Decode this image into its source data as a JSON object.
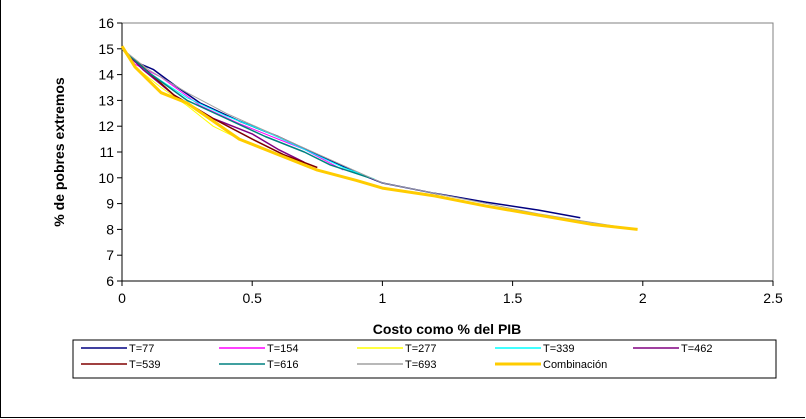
{
  "chart_data": {
    "type": "line",
    "title": "",
    "xlabel": "Costo como % del PIB",
    "ylabel": "% de pobres extremos",
    "xlim": [
      0,
      2.5
    ],
    "ylim": [
      6,
      16
    ],
    "x_ticks": [
      "0",
      "0.5",
      "1",
      "1.5",
      "2",
      "2.5"
    ],
    "y_ticks": [
      "6",
      "7",
      "8",
      "9",
      "10",
      "11",
      "12",
      "13",
      "14",
      "15",
      "16"
    ],
    "grid": false,
    "legend_position": "bottom",
    "series": [
      {
        "name": "T=77",
        "color": "#000080",
        "width": 1.5,
        "x": [
          0,
          0.05,
          0.12,
          0.2,
          0.3,
          0.45,
          0.6,
          0.75,
          0.9,
          1.0,
          1.2,
          1.4,
          1.6,
          1.76
        ],
        "y": [
          15.0,
          14.5,
          14.2,
          13.6,
          12.9,
          12.2,
          11.6,
          10.9,
          10.2,
          9.8,
          9.4,
          9.05,
          8.75,
          8.45
        ]
      },
      {
        "name": "T=154",
        "color": "#ff00ff",
        "width": 1,
        "x": [
          0,
          0.05,
          0.15,
          0.3,
          0.45,
          0.6,
          0.7,
          0.85
        ],
        "y": [
          15.0,
          14.4,
          13.9,
          12.8,
          12.1,
          11.5,
          11.1,
          10.3
        ]
      },
      {
        "name": "T=277",
        "color": "#ffff00",
        "width": 1,
        "x": [
          0,
          0.05,
          0.15,
          0.25,
          0.35,
          0.45,
          0.55
        ],
        "y": [
          15.0,
          14.3,
          13.5,
          12.8,
          12.0,
          11.5,
          11.1
        ]
      },
      {
        "name": "T=339",
        "color": "#00ffff",
        "width": 1,
        "x": [
          0,
          0.1,
          0.25,
          0.4,
          0.55,
          0.7,
          0.85,
          0.97
        ],
        "y": [
          15.0,
          14.1,
          13.1,
          12.4,
          11.8,
          11.1,
          10.4,
          9.95
        ]
      },
      {
        "name": "T=462",
        "color": "#800080",
        "width": 1.5,
        "x": [
          0,
          0.08,
          0.2,
          0.35,
          0.5,
          0.6,
          0.7
        ],
        "y": [
          15.0,
          14.2,
          13.2,
          12.3,
          11.7,
          11.1,
          10.6
        ]
      },
      {
        "name": "T=539",
        "color": "#800000",
        "width": 1.5,
        "x": [
          0,
          0.08,
          0.2,
          0.35,
          0.5,
          0.62,
          0.75
        ],
        "y": [
          15.0,
          14.3,
          13.2,
          12.3,
          11.5,
          10.9,
          10.4
        ]
      },
      {
        "name": "T=616",
        "color": "#008080",
        "width": 1.5,
        "x": [
          0,
          0.1,
          0.25,
          0.4,
          0.55,
          0.7,
          0.8,
          0.95
        ],
        "y": [
          15.0,
          14.1,
          13.0,
          12.3,
          11.6,
          11.0,
          10.5,
          10.0
        ]
      },
      {
        "name": "T=693",
        "color": "#a0a0a0",
        "width": 1,
        "x": [
          0,
          0.1,
          0.25,
          0.4,
          0.6,
          0.8,
          1.0,
          1.3,
          1.6,
          1.97
        ],
        "y": [
          15.0,
          14.2,
          13.3,
          12.5,
          11.6,
          10.7,
          9.8,
          9.2,
          8.6,
          8.0
        ]
      },
      {
        "name": "Combinación",
        "color": "#ffcc00",
        "width": 3,
        "x": [
          0,
          0.05,
          0.1,
          0.15,
          0.25,
          0.35,
          0.45,
          0.6,
          0.75,
          0.9,
          1.0,
          1.2,
          1.4,
          1.6,
          1.8,
          1.98
        ],
        "y": [
          15.1,
          14.3,
          13.8,
          13.3,
          12.9,
          12.2,
          11.5,
          10.9,
          10.3,
          9.9,
          9.6,
          9.3,
          8.9,
          8.55,
          8.2,
          8.0
        ]
      }
    ]
  }
}
